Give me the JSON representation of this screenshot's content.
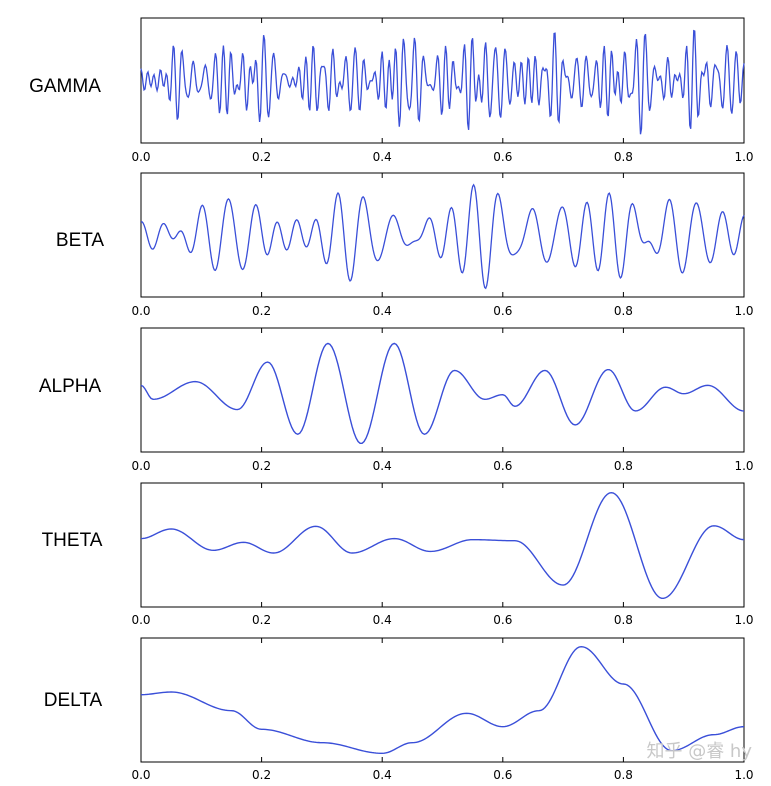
{
  "chart_data": [
    {
      "type": "line",
      "label": "GAMMA",
      "xlim": [
        0,
        1
      ],
      "ticks": [
        "0.0",
        "0.2",
        "0.4",
        "0.6",
        "0.8",
        "1.0"
      ],
      "color": "#3a4fd8",
      "waves": [
        {
          "f": 60,
          "a": 0.28,
          "p": 0.3
        },
        {
          "f": 73,
          "a": 0.24,
          "p": 1.7
        },
        {
          "f": 87,
          "a": 0.2,
          "p": 2.9
        },
        {
          "f": 52,
          "a": 0.18,
          "p": 4.1
        },
        {
          "f": 95,
          "a": 0.14,
          "p": 0.9
        }
      ],
      "envelope": [
        [
          0.0,
          0.55
        ],
        [
          0.15,
          0.9
        ],
        [
          0.3,
          0.75
        ],
        [
          0.47,
          1.0
        ],
        [
          0.56,
          1.0
        ],
        [
          0.7,
          0.85
        ],
        [
          0.88,
          1.0
        ],
        [
          1.0,
          0.8
        ]
      ]
    },
    {
      "type": "line",
      "label": "BETA",
      "xlim": [
        0,
        1
      ],
      "ticks": [
        "0.0",
        "0.2",
        "0.4",
        "0.6",
        "0.8",
        "1.0"
      ],
      "color": "#3a4fd8",
      "waves": [
        {
          "f": 22,
          "a": 0.35,
          "p": 0.4
        },
        {
          "f": 27,
          "a": 0.3,
          "p": 2.1
        },
        {
          "f": 18,
          "a": 0.2,
          "p": 3.5
        },
        {
          "f": 31,
          "a": 0.15,
          "p": 1.0
        }
      ],
      "envelope": [
        [
          0.0,
          0.4
        ],
        [
          0.1,
          0.55
        ],
        [
          0.21,
          1.0
        ],
        [
          0.3,
          0.7
        ],
        [
          0.5,
          0.85
        ],
        [
          0.62,
          0.9
        ],
        [
          0.85,
          0.85
        ],
        [
          1.0,
          0.6
        ]
      ]
    },
    {
      "type": "line",
      "label": "ALPHA",
      "xlim": [
        0,
        1
      ],
      "ticks": [
        "0.0",
        "0.2",
        "0.4",
        "0.6",
        "0.8",
        "1.0"
      ],
      "color": "#3a4fd8",
      "curve": [
        [
          0.0,
          0.1
        ],
        [
          0.02,
          -0.2
        ],
        [
          0.09,
          0.18
        ],
        [
          0.16,
          -0.42
        ],
        [
          0.21,
          0.6
        ],
        [
          0.26,
          -0.95
        ],
        [
          0.31,
          1.0
        ],
        [
          0.365,
          -1.15
        ],
        [
          0.42,
          1.0
        ],
        [
          0.47,
          -0.95
        ],
        [
          0.52,
          0.42
        ],
        [
          0.57,
          -0.2
        ],
        [
          0.6,
          -0.1
        ],
        [
          0.62,
          -0.35
        ],
        [
          0.67,
          0.42
        ],
        [
          0.72,
          -0.75
        ],
        [
          0.775,
          0.44
        ],
        [
          0.82,
          -0.45
        ],
        [
          0.87,
          0.06
        ],
        [
          0.9,
          -0.08
        ],
        [
          0.94,
          0.1
        ],
        [
          1.0,
          -0.45
        ]
      ]
    },
    {
      "type": "line",
      "label": "THETA",
      "xlim": [
        0,
        1
      ],
      "ticks": [
        "0.0",
        "0.2",
        "0.4",
        "0.6",
        "0.8",
        "1.0"
      ],
      "color": "#3a4fd8",
      "curve": [
        [
          0.0,
          0.12
        ],
        [
          0.05,
          0.3
        ],
        [
          0.12,
          -0.1
        ],
        [
          0.17,
          0.05
        ],
        [
          0.22,
          -0.15
        ],
        [
          0.29,
          0.35
        ],
        [
          0.35,
          -0.15
        ],
        [
          0.42,
          0.12
        ],
        [
          0.48,
          -0.12
        ],
        [
          0.55,
          0.1
        ],
        [
          0.62,
          0.08
        ],
        [
          0.7,
          -0.75
        ],
        [
          0.78,
          0.98
        ],
        [
          0.865,
          -1.0
        ],
        [
          0.95,
          0.36
        ],
        [
          1.0,
          0.1
        ]
      ]
    },
    {
      "type": "line",
      "label": "DELTA",
      "xlim": [
        0,
        1
      ],
      "ticks": [
        "0.0",
        "0.2",
        "0.4",
        "0.6",
        "0.8",
        "1.0"
      ],
      "color": "#3a4fd8",
      "curve": [
        [
          0.0,
          0.1
        ],
        [
          0.05,
          0.15
        ],
        [
          0.15,
          -0.2
        ],
        [
          0.2,
          -0.55
        ],
        [
          0.3,
          -0.8
        ],
        [
          0.4,
          -1.0
        ],
        [
          0.45,
          -0.8
        ],
        [
          0.54,
          -0.25
        ],
        [
          0.6,
          -0.5
        ],
        [
          0.66,
          -0.2
        ],
        [
          0.73,
          1.0
        ],
        [
          0.8,
          0.3
        ],
        [
          0.88,
          -0.95
        ],
        [
          0.95,
          -0.65
        ],
        [
          1.0,
          -0.5
        ]
      ]
    }
  ],
  "watermark": "知乎 @睿 hy"
}
